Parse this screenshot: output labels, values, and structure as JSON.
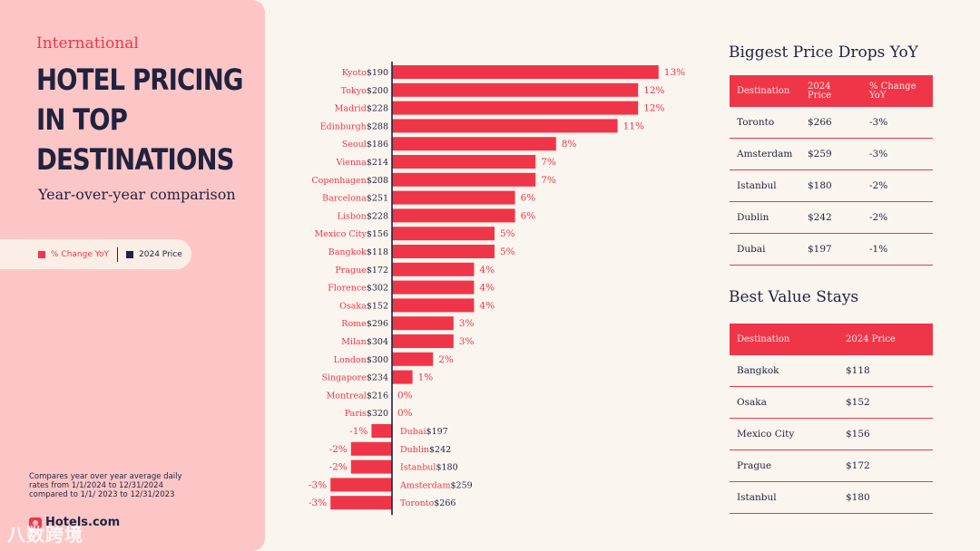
{
  "kicker": "International",
  "headline": [
    "HOTEL PRICING",
    "IN TOP",
    "DESTINATIONS"
  ],
  "subhead": "Year-over-year comparison",
  "legend": {
    "pct_label": "% Change YoY",
    "price_label": "2024 Price",
    "pct_color": "#ef3649",
    "price_color": "#1f2340"
  },
  "footnote": "Compares year over year average daily rates from 1/1/2024 to 12/31/2024 compared to 1/1/ 2023 to 12/31/2023",
  "logo": "Hotels.com",
  "watermark": "八数跨境",
  "chart_data": {
    "type": "bar",
    "orientation": "horizontal",
    "categories": [
      "Kyoto",
      "Tokyo",
      "Madrid",
      "Edinburgh",
      "Seoul",
      "Vienna",
      "Copenhagen",
      "Barcelona",
      "Lisbon",
      "Mexico City",
      "Bangkok",
      "Prague",
      "Florence",
      "Osaka",
      "Rome",
      "Milan",
      "London",
      "Singapore",
      "Montreal",
      "Paris",
      "Dubai",
      "Dublin",
      "Istanbul",
      "Amsterdam",
      "Toronto"
    ],
    "prices": [
      "$190",
      "$200",
      "$228",
      "$288",
      "$186",
      "$214",
      "$208",
      "$251",
      "$228",
      "$156",
      "$118",
      "$172",
      "$302",
      "$152",
      "$296",
      "$304",
      "$300",
      "$234",
      "$216",
      "$320",
      "$197",
      "$242",
      "$180",
      "$259",
      "$266"
    ],
    "values": [
      13,
      12,
      12,
      11,
      8,
      7,
      7,
      6,
      6,
      5,
      5,
      4,
      4,
      4,
      3,
      3,
      2,
      1,
      0,
      0,
      -1,
      -2,
      -2,
      -3,
      -3
    ],
    "value_labels": [
      "13%",
      "12%",
      "12%",
      "11%",
      "8%",
      "7%",
      "7%",
      "6%",
      "6%",
      "5%",
      "5%",
      "4%",
      "4%",
      "4%",
      "3%",
      "3%",
      "2%",
      "1%",
      "0%",
      "0%",
      "-1%",
      "-2%",
      "-2%",
      "-3%",
      "-3%"
    ],
    "series": [
      {
        "name": "% Change YoY"
      }
    ],
    "bar_color": "#ef3649"
  },
  "drops": {
    "title": "Biggest Price Drops YoY",
    "headers": [
      "Destination",
      "2024 Price",
      "% Change YoY"
    ],
    "rows": [
      [
        "Toronto",
        "$266",
        "-3%"
      ],
      [
        "Amsterdam",
        "$259",
        "-3%"
      ],
      [
        "Istanbul",
        "$180",
        "-2%"
      ],
      [
        "Dublin",
        "$242",
        "-2%"
      ],
      [
        "Dubai",
        "$197",
        "-1%"
      ]
    ]
  },
  "value_stays": {
    "title": "Best Value Stays",
    "headers": [
      "Destination",
      "2024 Price"
    ],
    "rows": [
      [
        "Bangkok",
        "$118"
      ],
      [
        "Osaka",
        "$152"
      ],
      [
        "Mexico City",
        "$156"
      ],
      [
        "Prague",
        "$172"
      ],
      [
        "Istanbul",
        "$180"
      ]
    ]
  }
}
